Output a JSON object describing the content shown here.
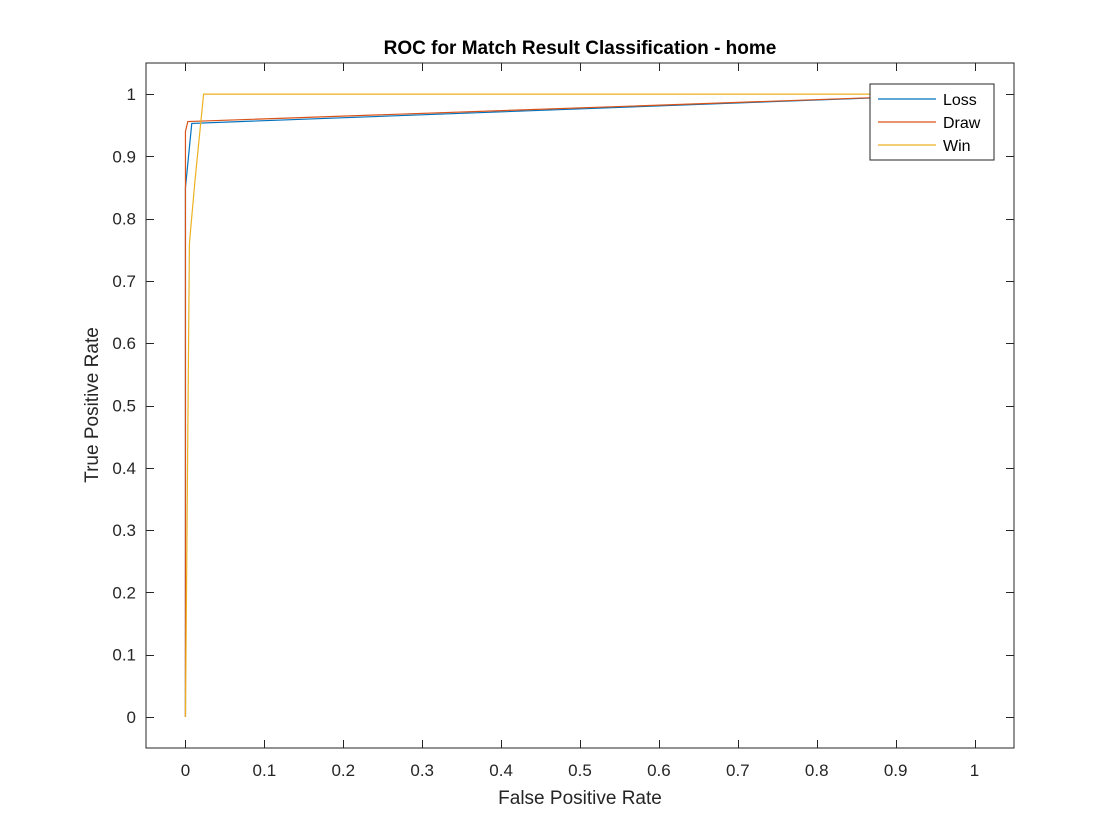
{
  "chart_data": {
    "type": "line",
    "title": "ROC for Match Result Classification - home",
    "xlabel": "False Positive Rate",
    "ylabel": "True Positive Rate",
    "xlim": [
      -0.05,
      1.05
    ],
    "ylim": [
      -0.05,
      1.05
    ],
    "xticks": [
      0,
      0.1,
      0.2,
      0.3,
      0.4,
      0.5,
      0.6,
      0.7,
      0.8,
      0.9,
      1
    ],
    "yticks": [
      0,
      0.1,
      0.2,
      0.3,
      0.4,
      0.5,
      0.6,
      0.7,
      0.8,
      0.9,
      1
    ],
    "xtick_labels": [
      "0",
      "0.1",
      "0.2",
      "0.3",
      "0.4",
      "0.5",
      "0.6",
      "0.7",
      "0.8",
      "0.9",
      "1"
    ],
    "ytick_labels": [
      "0",
      "0.1",
      "0.2",
      "0.3",
      "0.4",
      "0.5",
      "0.6",
      "0.7",
      "0.8",
      "0.9",
      "1"
    ],
    "grid": false,
    "legend_position": "top-right",
    "series": [
      {
        "name": "Loss",
        "color": "#0072BD",
        "x": [
          0,
          0,
          0.008,
          1
        ],
        "y": [
          0,
          0.85,
          0.953,
          1
        ]
      },
      {
        "name": "Draw",
        "color": "#D95319",
        "x": [
          0,
          0,
          0.003,
          1
        ],
        "y": [
          0,
          0.94,
          0.956,
          1
        ]
      },
      {
        "name": "Win",
        "color": "#EDB120",
        "x": [
          0,
          0.005,
          0.012,
          0.023,
          1
        ],
        "y": [
          0,
          0.76,
          0.86,
          1,
          1
        ]
      }
    ]
  }
}
